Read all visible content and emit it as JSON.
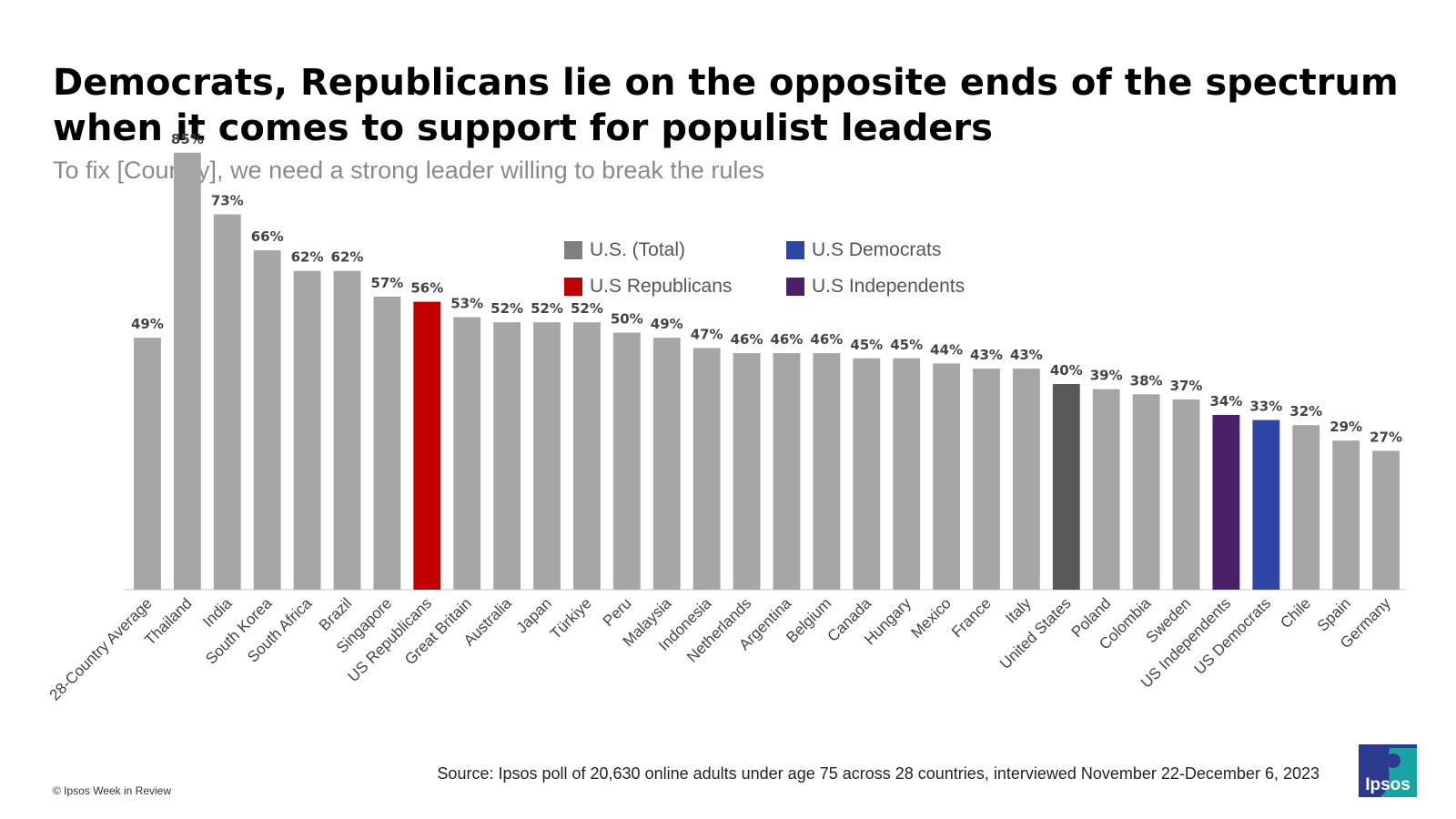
{
  "title": "Democrats, Republicans lie on the opposite ends of the spectrum when it comes to support for populist leaders",
  "subtitle": "To fix [Country], we need a strong leader willing to break the rules",
  "legend": [
    {
      "label": "U.S. (Total)",
      "color": "#808080"
    },
    {
      "label": "U.S Democrats",
      "color": "#2e45a3"
    },
    {
      "label": "U.S Republicans",
      "color": "#c00000"
    },
    {
      "label": "U.S Independents",
      "color": "#4a2068"
    }
  ],
  "source": "Source: Ipsos poll of 20,630 online adults under age 75 across 28 countries, interviewed November 22-December 6, 2023",
  "copyright": "© Ipsos Week in Review",
  "logo_text": "Ipsos",
  "colors": {
    "default": "#a6a6a6",
    "us_total": "#595959",
    "republicans": "#c00000",
    "democrats": "#2e45a3",
    "independents": "#4a2068"
  },
  "chart_data": {
    "type": "bar",
    "title": "Democrats, Republicans lie on the opposite ends of the spectrum when it comes to support for populist leaders",
    "subtitle": "To fix [Country], we need a strong leader willing to break the rules",
    "ylim": [
      0,
      100
    ],
    "grid": false,
    "legend_position": "top-center",
    "categories": [
      "28-Country Average",
      "Thailand",
      "India",
      "South Korea",
      "South Africa",
      "Brazil",
      "Singapore",
      "US Republicans",
      "Great Britain",
      "Australia",
      "Japan",
      "Türkiye",
      "Peru",
      "Malaysia",
      "Indonesia",
      "Netherlands",
      "Argentina",
      "Belgium",
      "Canada",
      "Hungary",
      "Mexico",
      "France",
      "Italy",
      "United States",
      "Poland",
      "Colombia",
      "Sweden",
      "US Independents",
      "US Democrats",
      "Chile",
      "Spain",
      "Germany"
    ],
    "values": [
      49,
      85,
      73,
      66,
      62,
      62,
      57,
      56,
      53,
      52,
      52,
      52,
      50,
      49,
      47,
      46,
      46,
      46,
      45,
      45,
      44,
      43,
      43,
      40,
      39,
      38,
      37,
      34,
      33,
      32,
      29,
      27
    ],
    "data_labels": [
      "49%",
      "85%",
      "73%",
      "66%",
      "62%",
      "62%",
      "57%",
      "56%",
      "53%",
      "52%",
      "52%",
      "52%",
      "50%",
      "49%",
      "47%",
      "46%",
      "46%",
      "46%",
      "45%",
      "45%",
      "44%",
      "43%",
      "43%",
      "40%",
      "39%",
      "38%",
      "37%",
      "34%",
      "33%",
      "32%",
      "29%",
      "27%"
    ],
    "highlight": {
      "US Republicans": "republicans",
      "United States": "us_total",
      "US Independents": "independents",
      "US Democrats": "democrats"
    }
  }
}
